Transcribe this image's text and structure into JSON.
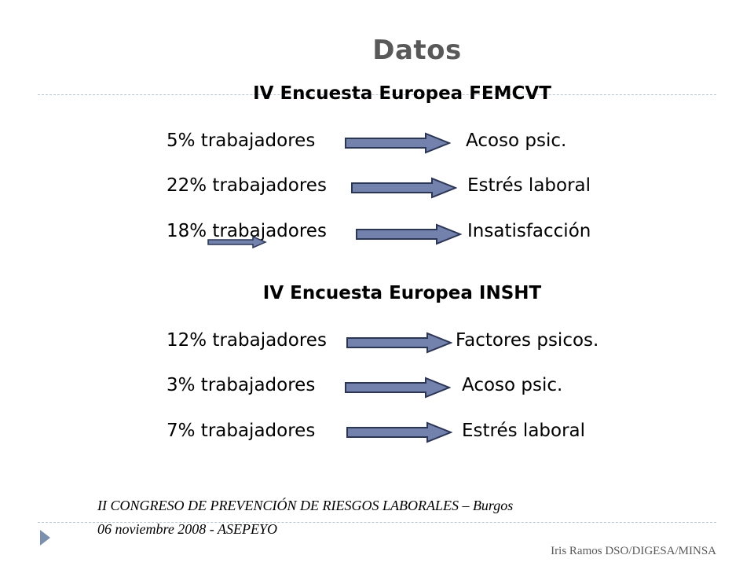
{
  "slide": {
    "title": "Datos",
    "section1": {
      "title": "IV Encuesta  Europea FEMCVT",
      "rows": [
        {
          "left": "5% trabajadores",
          "right": "Acoso psic."
        },
        {
          "left": "22% trabajadores",
          "right": "Estrés laboral"
        },
        {
          "left": "18% trabajadores",
          "right": "Insatisfacción"
        }
      ]
    },
    "section2": {
      "title": "IV Encuesta  Europea INSHT",
      "rows": [
        {
          "left": "12% trabajadores",
          "right": "Factores psicos."
        },
        {
          "left": "3% trabajadores",
          "right": "Acoso psic."
        },
        {
          "left": "7% trabajadores",
          "right": "Estrés laboral"
        }
      ]
    },
    "footer": {
      "line1": "II CONGRESO DE PREVENCIÓN DE RIESGOS LABORALES – Burgos",
      "line2": "06 noviembre 2008 - ASEPEYO",
      "author": "Iris Ramos DSO/DIGESA/MINSA"
    },
    "colors": {
      "arrow_fill": "#7382ad",
      "arrow_stroke": "#2b3554",
      "title_color": "#595959",
      "divider": "#b8c3d3",
      "bullet": "#7b90ad"
    },
    "icons": {
      "arrow": "right-arrow-icon",
      "bullet": "triangle-bullet-icon"
    }
  }
}
